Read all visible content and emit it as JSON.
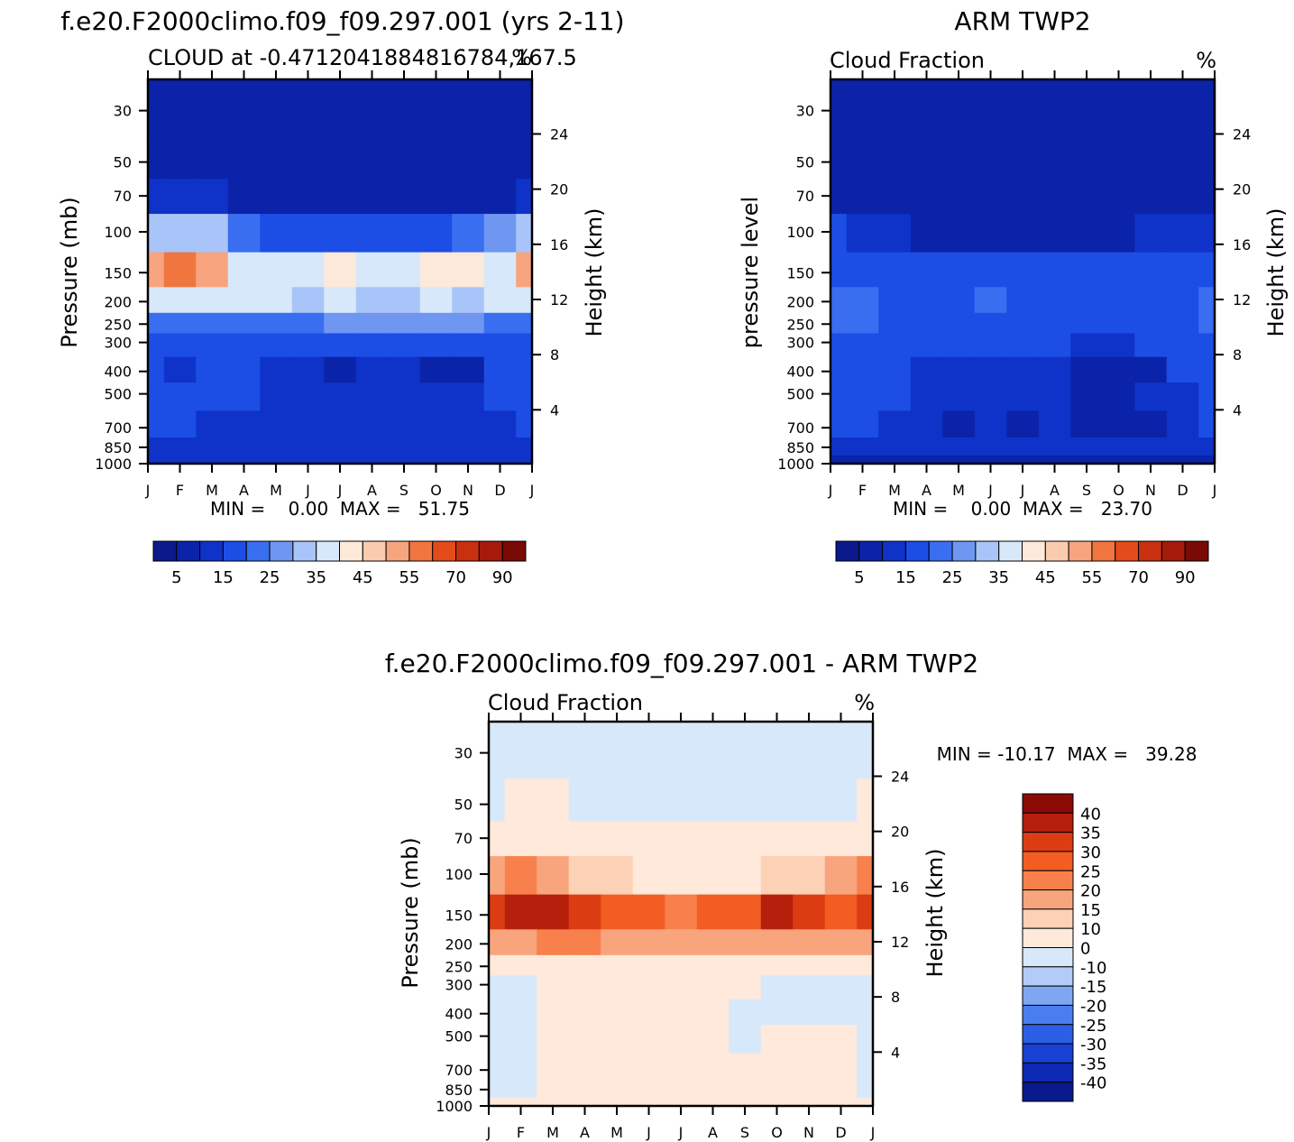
{
  "panels": [
    {
      "id": "model",
      "title": "f.e20.F2000climo.f09_f09.297.001 (yrs 2-11)",
      "subtitle_left": "CLOUD at -0.4712041884816784,167.5",
      "subtitle_right": "%",
      "left_axis_label": "Pressure (mb)",
      "right_axis_label": "Height (km)",
      "minmax": "MIN =    0.00  MAX =   51.75",
      "colorbar_labels": [
        "5",
        "15",
        "25",
        "35",
        "45",
        "55",
        "70",
        "90"
      ]
    },
    {
      "id": "obs",
      "title": "ARM TWP2",
      "subtitle_left": "Cloud Fraction",
      "subtitle_right": "%",
      "left_axis_label": "pressure level",
      "right_axis_label": "Height (km)",
      "minmax": "MIN =    0.00  MAX =   23.70",
      "colorbar_labels": [
        "5",
        "15",
        "25",
        "35",
        "45",
        "55",
        "70",
        "90"
      ]
    },
    {
      "id": "diff",
      "title": "f.e20.F2000climo.f09_f09.297.001 - ARM TWP2",
      "subtitle_left": "Cloud Fraction",
      "subtitle_right": "%",
      "left_axis_label": "Pressure (mb)",
      "right_axis_label": "Height (km)",
      "minmax": "MIN = -10.17  MAX =   39.28",
      "colorbar_labels": [
        "40",
        "35",
        "30",
        "25",
        "20",
        "15",
        "10",
        "0",
        "-10",
        "-15",
        "-20",
        "-25",
        "-30",
        "-35",
        "-40"
      ]
    }
  ],
  "colors": {
    "main_palette": [
      "#0a1a8c",
      "#0b23a8",
      "#0f33c8",
      "#1c4ee6",
      "#3a6ef0",
      "#6f97f2",
      "#a9c4f8",
      "#d7e8fa",
      "#fde9da",
      "#fbcbb0",
      "#f7a47f",
      "#f0753f",
      "#e44b1a",
      "#c93010",
      "#a51a0a",
      "#7a0a05"
    ],
    "diff_palette": [
      "#8a0a05",
      "#b5200c",
      "#dc3c12",
      "#f35c22",
      "#f7804c",
      "#f8a57e",
      "#fcd1b5",
      "#fee9db",
      "#d7e8fa",
      "#b2cbf8",
      "#7ea6f2",
      "#4a7ef0",
      "#2a5ee4",
      "#1840d2",
      "#0d29b4",
      "#0a1a8c"
    ]
  },
  "chart_data": [
    {
      "type": "heatmap",
      "title": "f.e20.F2000climo.f09_f09.297.001 (yrs 2-11)",
      "x_ticks": [
        "J",
        "F",
        "M",
        "A",
        "M",
        "J",
        "J",
        "A",
        "S",
        "O",
        "N",
        "D",
        "J"
      ],
      "y_ticks_pressure": [
        30,
        50,
        70,
        100,
        150,
        200,
        250,
        300,
        400,
        500,
        700,
        850,
        1000
      ],
      "y_ticks_height": [
        24,
        20,
        16,
        12,
        8,
        4
      ],
      "levels": [
        0,
        5,
        10,
        15,
        20,
        25,
        30,
        35,
        40,
        45,
        50,
        55,
        60,
        70,
        80,
        90
      ],
      "min": 0.0,
      "max": 51.75,
      "z": [
        [
          0,
          0,
          0,
          0,
          0,
          0,
          0,
          0,
          0,
          0,
          0,
          0,
          0,
          0
        ],
        [
          0,
          0,
          0,
          0,
          0,
          0,
          0,
          0,
          0,
          0,
          0,
          0,
          0,
          0
        ],
        [
          8,
          8,
          6,
          3,
          2,
          1,
          0,
          0,
          1,
          1,
          2,
          4,
          7,
          8
        ],
        [
          25,
          27,
          26,
          18,
          14,
          11,
          10,
          10,
          11,
          14,
          18,
          22,
          26,
          26
        ],
        [
          46,
          51,
          45,
          34,
          32,
          30,
          37,
          31,
          30,
          37,
          35,
          30,
          46,
          46
        ],
        [
          30,
          32,
          31,
          30,
          30,
          28,
          30,
          28,
          28,
          30,
          29,
          30,
          30,
          30
        ],
        [
          17,
          17,
          16,
          17,
          18,
          19,
          20,
          21,
          20,
          21,
          20,
          19,
          17,
          17
        ],
        [
          11,
          11,
          11,
          10,
          10,
          11,
          11,
          12,
          11,
          12,
          11,
          12,
          11,
          11
        ],
        [
          13,
          7,
          11,
          12,
          6,
          6,
          4,
          6,
          6,
          2,
          2,
          10,
          13,
          13
        ],
        [
          11,
          10,
          11,
          11,
          9,
          9,
          7,
          8,
          7,
          9,
          9,
          10,
          11,
          11
        ],
        [
          10,
          11,
          9,
          6,
          5,
          6,
          5,
          5,
          5,
          6,
          6,
          8,
          10,
          10
        ],
        [
          8,
          7,
          5,
          5,
          5,
          5,
          5,
          5,
          5,
          5,
          5,
          6,
          8,
          8
        ],
        [
          9,
          9,
          9,
          9,
          9,
          9,
          9,
          9,
          9,
          9,
          9,
          9,
          9,
          9
        ]
      ]
    },
    {
      "type": "heatmap",
      "title": "ARM TWP2",
      "x_ticks": [
        "J",
        "F",
        "M",
        "A",
        "M",
        "J",
        "J",
        "A",
        "S",
        "O",
        "N",
        "D",
        "J"
      ],
      "y_ticks_pressure": [
        30,
        50,
        70,
        100,
        150,
        200,
        250,
        300,
        400,
        500,
        700,
        850,
        1000
      ],
      "y_ticks_height": [
        24,
        20,
        16,
        12,
        8,
        4
      ],
      "levels": [
        0,
        5,
        10,
        15,
        20,
        25,
        30,
        35,
        40,
        45,
        50,
        55,
        60,
        70,
        80,
        90
      ],
      "min": 0.0,
      "max": 23.7,
      "z": [
        [
          0,
          0,
          0,
          0,
          0,
          0,
          0,
          0,
          0,
          0,
          0,
          0,
          0,
          0
        ],
        [
          0,
          0,
          0,
          0,
          0,
          0,
          0,
          0,
          0,
          0,
          0,
          0,
          0,
          0
        ],
        [
          1,
          1,
          0,
          0,
          0,
          0,
          0,
          0,
          0,
          0,
          0,
          0,
          1,
          1
        ],
        [
          10,
          9,
          7,
          4,
          3,
          3,
          3,
          4,
          4,
          4,
          5,
          7,
          9,
          10
        ],
        [
          13,
          13,
          12,
          11,
          11,
          12,
          11,
          11,
          10,
          11,
          11,
          12,
          13,
          13
        ],
        [
          17,
          19,
          14,
          12,
          12,
          15,
          14,
          13,
          12,
          13,
          13,
          13,
          17,
          17
        ],
        [
          15,
          16,
          14,
          14,
          13,
          13,
          13,
          13,
          14,
          14,
          13,
          13,
          15,
          15
        ],
        [
          13,
          12,
          12,
          10,
          10,
          11,
          11,
          11,
          8,
          8,
          10,
          13,
          13,
          13
        ],
        [
          14,
          13,
          11,
          9,
          7,
          7,
          6,
          6,
          4,
          2,
          3,
          11,
          14,
          14
        ],
        [
          12,
          12,
          11,
          9,
          6,
          6,
          7,
          5,
          3,
          3,
          7,
          9,
          12,
          12
        ],
        [
          11,
          11,
          9,
          7,
          4,
          5,
          4,
          5,
          3,
          3,
          4,
          8,
          11,
          11
        ],
        [
          9,
          8,
          6,
          5,
          5,
          6,
          5,
          6,
          6,
          6,
          6,
          6,
          9,
          9
        ],
        [
          3,
          3,
          3,
          3,
          3,
          3,
          3,
          3,
          3,
          3,
          3,
          3,
          3,
          3
        ]
      ]
    },
    {
      "type": "heatmap",
      "title": "f.e20.F2000climo.f09_f09.297.001 - ARM TWP2",
      "x_ticks": [
        "J",
        "F",
        "M",
        "A",
        "M",
        "J",
        "J",
        "A",
        "S",
        "O",
        "N",
        "D",
        "J"
      ],
      "y_ticks_pressure": [
        30,
        50,
        70,
        100,
        150,
        200,
        250,
        300,
        400,
        500,
        700,
        850,
        1000
      ],
      "y_ticks_height": [
        24,
        20,
        16,
        12,
        8,
        4
      ],
      "levels": [
        -40,
        -35,
        -30,
        -25,
        -20,
        -15,
        -10,
        0,
        10,
        15,
        20,
        25,
        30,
        35,
        40
      ],
      "min": -10.17,
      "max": 39.28,
      "z": [
        [
          -1,
          -1,
          -1,
          -1,
          -1,
          -1,
          -1,
          -1,
          -1,
          -1,
          -1,
          -1,
          -1,
          -1
        ],
        [
          -1,
          1,
          1,
          -1,
          -1,
          -1,
          -1,
          -1,
          -1,
          -1,
          -1,
          -1,
          1,
          1
        ],
        [
          4,
          4,
          4,
          2,
          2,
          2,
          2,
          2,
          2,
          2,
          2,
          4,
          4,
          4
        ],
        [
          18,
          20,
          18,
          12,
          11,
          9,
          8,
          8,
          9,
          10,
          13,
          16,
          20,
          20
        ],
        [
          33,
          39,
          37,
          30,
          26,
          28,
          24,
          26,
          27,
          35,
          30,
          26,
          32,
          33
        ],
        [
          15,
          16,
          20,
          20,
          18,
          18,
          16,
          15,
          17,
          18,
          16,
          16,
          15,
          15
        ],
        [
          6,
          6,
          6,
          7,
          7,
          7,
          7,
          7,
          7,
          7,
          7,
          6,
          6,
          6
        ],
        [
          -2,
          -2,
          3,
          3,
          3,
          3,
          3,
          3,
          3,
          -2,
          -2,
          -2,
          -2,
          -2
        ],
        [
          -3,
          -3,
          3,
          3,
          2,
          2,
          2,
          2,
          -1,
          -2,
          -3,
          -3,
          -3,
          -3
        ],
        [
          -2,
          -2,
          3,
          3,
          3,
          3,
          2,
          3,
          -1,
          3,
          3,
          3,
          -2,
          -2
        ],
        [
          -2,
          -2,
          3,
          2,
          2,
          3,
          2,
          3,
          3,
          3,
          3,
          3,
          -2,
          -2
        ],
        [
          -1,
          -1,
          1,
          1,
          1,
          1,
          1,
          1,
          1,
          1,
          1,
          1,
          -1,
          -1
        ],
        [
          2,
          2,
          2,
          2,
          2,
          2,
          2,
          2,
          2,
          2,
          2,
          2,
          2,
          2
        ]
      ]
    }
  ]
}
